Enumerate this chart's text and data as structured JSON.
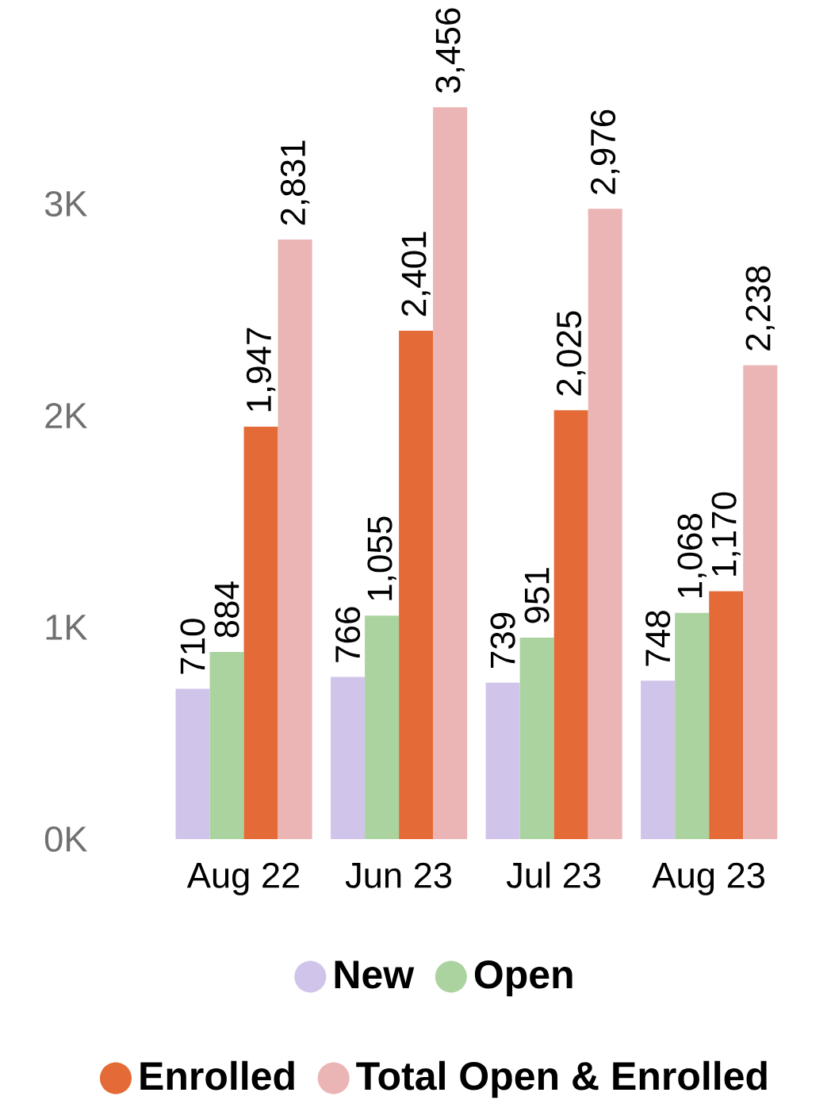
{
  "chart_data": {
    "type": "bar",
    "categories": [
      "Aug 22",
      "Jun 23",
      "Jul 23",
      "Aug 23"
    ],
    "series": [
      {
        "name": "New",
        "color": "#d0c4ea",
        "values": [
          710,
          766,
          739,
          748
        ],
        "value_labels": [
          "710",
          "766",
          "739",
          "748"
        ]
      },
      {
        "name": "Open",
        "color": "#abd3a0",
        "values": [
          884,
          1055,
          951,
          1068
        ],
        "value_labels": [
          "884",
          "1,055",
          "951",
          "1,068"
        ]
      },
      {
        "name": "Enrolled",
        "color": "#e46b37",
        "values": [
          1947,
          2401,
          2025,
          1170
        ],
        "value_labels": [
          "1,947",
          "2,401",
          "2,025",
          "1,170"
        ]
      },
      {
        "name": "Total Open & Enrolled",
        "color": "#eab5b4",
        "values": [
          2831,
          3456,
          2976,
          2238
        ],
        "value_labels": [
          "2,831",
          "3,456",
          "2,976",
          "2,238"
        ]
      }
    ],
    "ylim": [
      0,
      3456
    ],
    "yticks": [
      {
        "value": 0,
        "label": "0K"
      },
      {
        "value": 1000,
        "label": "1K"
      },
      {
        "value": 2000,
        "label": "2K"
      },
      {
        "value": 3000,
        "label": "3K"
      }
    ],
    "grid": false,
    "legend": "bottom"
  }
}
